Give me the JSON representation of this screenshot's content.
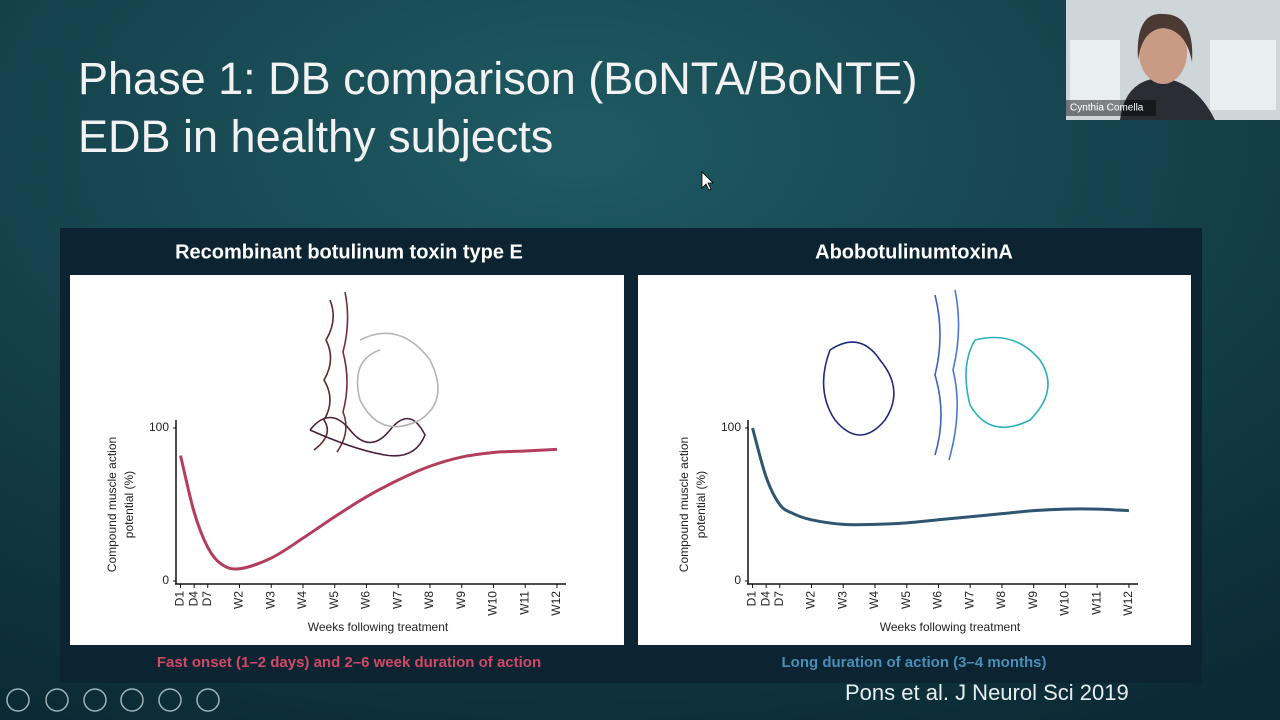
{
  "slide": {
    "title_lines": [
      "Phase 1: DB comparison (BoNTA/BoNTE)",
      "EDB in healthy subjects"
    ],
    "citation": "Pons et al. J Neurol Sci 2019"
  },
  "participant": {
    "name": "Cynthia Comella"
  },
  "chart_data": [
    {
      "type": "line",
      "title": "Recombinant botulinum toxin type E",
      "caption": "Fast onset (1–2 days) and 2–6 week duration of action",
      "caption_color": "#d04a66",
      "x": [
        1,
        4,
        7,
        10,
        14,
        21,
        28,
        35,
        42,
        49,
        56,
        63,
        70,
        77,
        84
      ],
      "series": [
        {
          "color": "#b23e5c",
          "values": [
            82,
            45,
            22,
            11,
            8,
            15,
            28,
            42,
            55,
            66,
            75,
            81,
            84,
            85,
            86
          ]
        }
      ],
      "xlim": [
        0,
        86
      ],
      "ylim": [
        0,
        100
      ],
      "xticks": [
        {
          "value": 1,
          "label": "D1"
        },
        {
          "value": 4,
          "label": "D4"
        },
        {
          "value": 7,
          "label": "D7"
        },
        {
          "value": 14,
          "label": "W2"
        },
        {
          "value": 21,
          "label": "W3"
        },
        {
          "value": 28,
          "label": "W4"
        },
        {
          "value": 35,
          "label": "W5"
        },
        {
          "value": 42,
          "label": "W6"
        },
        {
          "value": 49,
          "label": "W7"
        },
        {
          "value": 56,
          "label": "W8"
        },
        {
          "value": 63,
          "label": "W9"
        },
        {
          "value": 70,
          "label": "W10"
        },
        {
          "value": 77,
          "label": "W11"
        },
        {
          "value": 84,
          "label": "W12"
        }
      ],
      "yticks": [
        0,
        100
      ],
      "x_label": "Weeks following treatment",
      "y_label_lines": [
        "Compound muscle action",
        "potential (%)"
      ]
    },
    {
      "type": "line",
      "title": "AbobotulinumtoxinA",
      "caption": "Long duration of action (3–4 months)",
      "caption_color": "#4a8fb8",
      "x": [
        1,
        4,
        7,
        10,
        14,
        21,
        28,
        35,
        42,
        49,
        56,
        63,
        70,
        77,
        84
      ],
      "series": [
        {
          "color": "#2f5670",
          "values": [
            100,
            68,
            50,
            44,
            40,
            37,
            37,
            38,
            40,
            42,
            44,
            46,
            47,
            47,
            46
          ]
        }
      ],
      "xlim": [
        0,
        86
      ],
      "ylim": [
        0,
        100
      ],
      "xticks": [
        {
          "value": 1,
          "label": "D1"
        },
        {
          "value": 4,
          "label": "D4"
        },
        {
          "value": 7,
          "label": "D7"
        },
        {
          "value": 14,
          "label": "W2"
        },
        {
          "value": 21,
          "label": "W3"
        },
        {
          "value": 28,
          "label": "W4"
        },
        {
          "value": 35,
          "label": "W5"
        },
        {
          "value": 42,
          "label": "W6"
        },
        {
          "value": 49,
          "label": "W7"
        },
        {
          "value": 56,
          "label": "W8"
        },
        {
          "value": 63,
          "label": "W9"
        },
        {
          "value": 70,
          "label": "W10"
        },
        {
          "value": 77,
          "label": "W11"
        },
        {
          "value": 84,
          "label": "W12"
        }
      ],
      "yticks": [
        0,
        100
      ],
      "x_label": "Weeks following treatment",
      "y_label_lines": [
        "Compound muscle action",
        "potential (%)"
      ]
    }
  ]
}
